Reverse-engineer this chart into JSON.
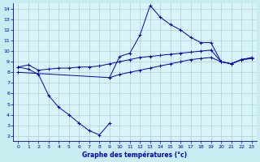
{
  "xlabel": "Graphe des températures (°c)",
  "background_color": "#c8ecf0",
  "plot_bg_color": "#d8f4f8",
  "line_color": "#0000bb",
  "grid_color": "#a0c8d0",
  "xlim": [
    -0.5,
    23.5
  ],
  "ylim": [
    1.5,
    14.5
  ],
  "xticks": [
    0,
    1,
    2,
    3,
    4,
    5,
    6,
    7,
    8,
    9,
    10,
    11,
    12,
    13,
    14,
    15,
    16,
    17,
    18,
    19,
    20,
    21,
    22,
    23
  ],
  "yticks": [
    2,
    3,
    4,
    5,
    6,
    7,
    8,
    9,
    10,
    11,
    12,
    13,
    14
  ],
  "series": [
    {
      "x": [
        0,
        1,
        2,
        3,
        4,
        5,
        6,
        7,
        8,
        9,
        10,
        11,
        12,
        13,
        14,
        15,
        16,
        17,
        18,
        19,
        20,
        21,
        22,
        23
      ],
      "y": [
        8.5,
        8.7,
        8.2,
        8.3,
        8.4,
        8.4,
        8.5,
        8.5,
        8.6,
        8.8,
        9.0,
        9.2,
        9.4,
        9.5,
        9.6,
        9.7,
        9.8,
        9.9,
        10.0,
        10.1,
        9.0,
        8.8,
        9.2,
        9.3
      ]
    },
    {
      "x": [
        0,
        9,
        10,
        11,
        12,
        13,
        14,
        15,
        16,
        17,
        18,
        19,
        20,
        21,
        22,
        23
      ],
      "y": [
        8.0,
        7.5,
        7.8,
        8.0,
        8.2,
        8.4,
        8.6,
        8.8,
        9.0,
        9.2,
        9.3,
        9.4,
        9.0,
        8.8,
        9.2,
        9.4
      ]
    },
    {
      "x": [
        9,
        10,
        11,
        12,
        13,
        14,
        15,
        16,
        17,
        18,
        19,
        20,
        21,
        22,
        23
      ],
      "y": [
        7.5,
        9.5,
        9.8,
        11.5,
        14.3,
        13.2,
        12.5,
        12.0,
        11.3,
        10.8,
        10.8,
        9.0,
        8.8,
        9.2,
        9.3
      ]
    },
    {
      "x": [
        0,
        1,
        2,
        3,
        4,
        5,
        6,
        7,
        8,
        9
      ],
      "y": [
        8.5,
        8.3,
        7.8,
        5.8,
        4.7,
        4.0,
        3.2,
        2.5,
        2.1,
        3.2
      ]
    }
  ]
}
